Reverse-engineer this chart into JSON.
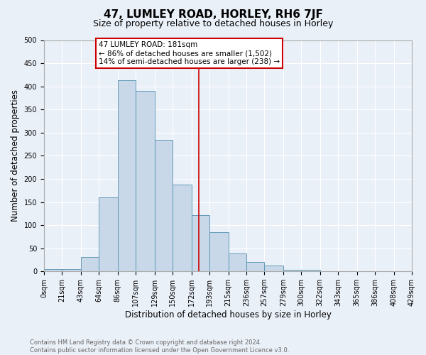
{
  "title": "47, LUMLEY ROAD, HORLEY, RH6 7JF",
  "subtitle": "Size of property relative to detached houses in Horley",
  "xlabel": "Distribution of detached houses by size in Horley",
  "ylabel": "Number of detached properties",
  "bar_labels": [
    "0sqm",
    "21sqm",
    "43sqm",
    "64sqm",
    "86sqm",
    "107sqm",
    "129sqm",
    "150sqm",
    "172sqm",
    "193sqm",
    "215sqm",
    "236sqm",
    "257sqm",
    "279sqm",
    "300sqm",
    "322sqm",
    "343sqm",
    "365sqm",
    "386sqm",
    "408sqm",
    "429sqm"
  ],
  "bar_values": [
    5,
    5,
    31,
    160,
    413,
    390,
    285,
    187,
    122,
    85,
    39,
    20,
    12,
    4,
    4,
    1,
    1,
    1,
    0,
    0,
    2
  ],
  "bar_color": "#c8d8e8",
  "bar_edge_color": "#5090b0",
  "vline_x": 181,
  "vline_color": "#cc0000",
  "annotation_text": "47 LUMLEY ROAD: 181sqm\n← 86% of detached houses are smaller (1,502)\n14% of semi-detached houses are larger (238) →",
  "annotation_box_color": "#ffffff",
  "annotation_box_edge": "#cc0000",
  "ylim": [
    0,
    500
  ],
  "footer_text": "Contains HM Land Registry data © Crown copyright and database right 2024.\nContains public sector information licensed under the Open Government Licence v3.0.",
  "background_color": "#eaf0f8",
  "grid_color": "#ffffff",
  "title_fontsize": 11,
  "subtitle_fontsize": 9,
  "axis_label_fontsize": 8.5,
  "tick_fontsize": 7,
  "footer_fontsize": 6,
  "annotation_fontsize": 7.5
}
